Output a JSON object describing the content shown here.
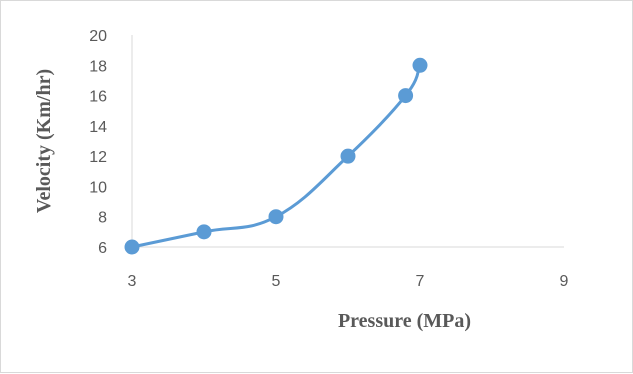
{
  "chart_data": {
    "type": "scatter",
    "xlabel": "Pressure (MPa)",
    "ylabel": "Velocity (Km/hr)",
    "xlim": [
      3,
      9
    ],
    "ylim": [
      6,
      20
    ],
    "x_ticks": [
      "3",
      "5",
      "7",
      "9"
    ],
    "y_ticks": [
      "6",
      "8",
      "10",
      "12",
      "14",
      "16",
      "18",
      "20"
    ],
    "grid": false,
    "line": "smoothed",
    "series": [
      {
        "x": [
          3,
          4,
          5,
          6,
          6.8,
          7
        ],
        "y": [
          6,
          7,
          8,
          12,
          16,
          18
        ]
      }
    ],
    "colors": {
      "series": "#5b9bd5",
      "axis": "#d9d9d9",
      "text": "#595959"
    }
  }
}
